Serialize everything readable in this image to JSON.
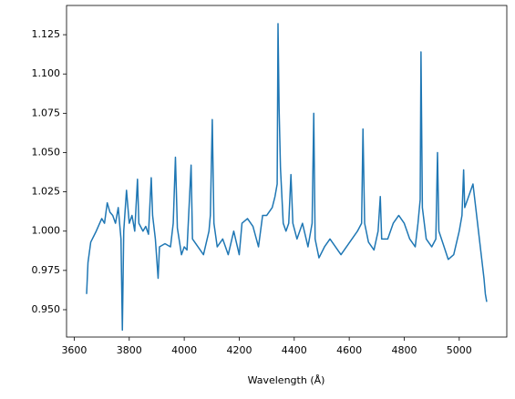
{
  "chart_data": {
    "type": "line",
    "xlabel": "Wavelength (Å)",
    "color": "#1f77b4",
    "x": [
      3645,
      3650,
      3660,
      3680,
      3700,
      3710,
      3720,
      3730,
      3740,
      3750,
      3760,
      3770,
      3775,
      3780,
      3790,
      3800,
      3810,
      3820,
      3830,
      3835,
      3850,
      3860,
      3870,
      3880,
      3885,
      3895,
      3905,
      3910,
      3930,
      3950,
      3960,
      3968,
      3975,
      3990,
      4000,
      4010,
      4025,
      4030,
      4050,
      4070,
      4090,
      4095,
      4102,
      4108,
      4120,
      4140,
      4160,
      4180,
      4200,
      4210,
      4230,
      4250,
      4270,
      4285,
      4300,
      4320,
      4330,
      4338,
      4341,
      4345,
      4350,
      4360,
      4370,
      4380,
      4388,
      4395,
      4410,
      4430,
      4450,
      4465,
      4471,
      4476,
      4490,
      4510,
      4530,
      4550,
      4570,
      4590,
      4610,
      4630,
      4645,
      4650,
      4656,
      4670,
      4690,
      4705,
      4713,
      4718,
      4740,
      4760,
      4780,
      4800,
      4820,
      4840,
      4850,
      4858,
      4861,
      4866,
      4880,
      4900,
      4915,
      4921,
      4926,
      4945,
      4960,
      4980,
      5000,
      5010,
      5016,
      5020,
      5040,
      5050,
      5060,
      5070,
      5080,
      5090,
      5095,
      5100
    ],
    "values": [
      0.96,
      0.98,
      0.993,
      1.0,
      1.008,
      1.005,
      1.018,
      1.012,
      1.01,
      1.005,
      1.015,
      0.995,
      0.937,
      1.0,
      1.026,
      1.005,
      1.01,
      1.0,
      1.033,
      1.005,
      1.0,
      1.003,
      0.998,
      1.034,
      1.01,
      0.995,
      0.97,
      0.99,
      0.992,
      0.99,
      1.005,
      1.047,
      1.002,
      0.985,
      0.99,
      0.988,
      1.042,
      0.995,
      0.99,
      0.985,
      1.0,
      1.01,
      1.071,
      1.005,
      0.99,
      0.995,
      0.985,
      1.0,
      0.985,
      1.005,
      1.008,
      1.003,
      0.99,
      1.01,
      1.01,
      1.015,
      1.022,
      1.03,
      1.132,
      1.078,
      1.04,
      1.005,
      1.0,
      1.005,
      1.036,
      1.005,
      0.995,
      1.005,
      0.99,
      1.005,
      1.075,
      0.995,
      0.983,
      0.99,
      0.995,
      0.99,
      0.985,
      0.99,
      0.995,
      1.0,
      1.005,
      1.065,
      1.005,
      0.993,
      0.988,
      1.0,
      1.022,
      0.995,
      0.995,
      1.005,
      1.01,
      1.005,
      0.995,
      0.99,
      1.005,
      1.02,
      1.114,
      1.015,
      0.995,
      0.99,
      0.995,
      1.05,
      1.0,
      0.99,
      0.982,
      0.985,
      1.0,
      1.01,
      1.039,
      1.015,
      1.025,
      1.03,
      1.015,
      1.0,
      0.985,
      0.97,
      0.96,
      0.955
    ],
    "xlim": [
      3572,
      5173
    ],
    "xticks": [
      3600,
      3800,
      4000,
      4200,
      4400,
      4600,
      4800,
      5000
    ],
    "ylim": [
      0.9326,
      1.1436
    ],
    "yticks": [
      {
        "value": 0.95,
        "label": "0.950"
      },
      {
        "value": 0.975,
        "label": "0.975"
      },
      {
        "value": 1.0,
        "label": "1.000"
      },
      {
        "value": 1.025,
        "label": "1.025"
      },
      {
        "value": 1.05,
        "label": "1.050"
      },
      {
        "value": 1.075,
        "label": "1.075"
      },
      {
        "value": 1.1,
        "label": "1.100"
      },
      {
        "value": 1.125,
        "label": "1.125"
      }
    ]
  }
}
